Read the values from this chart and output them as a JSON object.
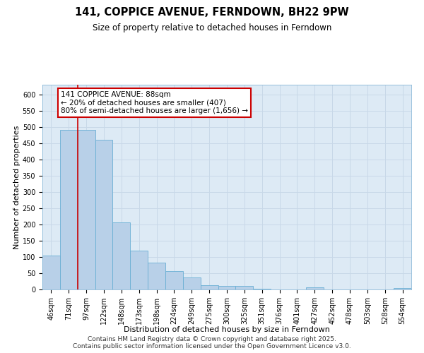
{
  "title": "141, COPPICE AVENUE, FERNDOWN, BH22 9PW",
  "subtitle": "Size of property relative to detached houses in Ferndown",
  "xlabel": "Distribution of detached houses by size in Ferndown",
  "ylabel": "Number of detached properties",
  "footer_line1": "Contains HM Land Registry data © Crown copyright and database right 2025.",
  "footer_line2": "Contains public sector information licensed under the Open Government Licence v3.0.",
  "categories": [
    "46sqm",
    "71sqm",
    "97sqm",
    "122sqm",
    "148sqm",
    "173sqm",
    "198sqm",
    "224sqm",
    "249sqm",
    "275sqm",
    "300sqm",
    "325sqm",
    "351sqm",
    "376sqm",
    "401sqm",
    "427sqm",
    "452sqm",
    "478sqm",
    "503sqm",
    "528sqm",
    "554sqm"
  ],
  "values": [
    105,
    490,
    490,
    460,
    207,
    120,
    83,
    57,
    38,
    14,
    10,
    10,
    3,
    0,
    0,
    6,
    0,
    0,
    0,
    0,
    5
  ],
  "bar_color": "#b8d0e8",
  "bar_edge_color": "#6aafd4",
  "vline_x": 1.5,
  "vline_color": "#cc0000",
  "annotation_line1": "141 COPPICE AVENUE: 88sqm",
  "annotation_line2": "← 20% of detached houses are smaller (407)",
  "annotation_line3": "80% of semi-detached houses are larger (1,656) →",
  "annotation_box_color": "#cc0000",
  "ylim": [
    0,
    630
  ],
  "yticks": [
    0,
    50,
    100,
    150,
    200,
    250,
    300,
    350,
    400,
    450,
    500,
    550,
    600
  ],
  "grid_color": "#c8d8e8",
  "background_color": "#ddeaf5",
  "title_fontsize": 10.5,
  "subtitle_fontsize": 8.5,
  "tick_fontsize": 7,
  "xlabel_fontsize": 8,
  "ylabel_fontsize": 8,
  "footer_fontsize": 6.5,
  "annot_fontsize": 7.5
}
